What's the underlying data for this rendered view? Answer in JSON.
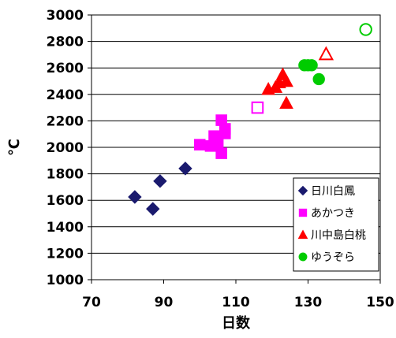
{
  "chart_data": {
    "type": "scatter",
    "title": "",
    "xlabel": "日数",
    "ylabel": "℃",
    "xlim": [
      70,
      150
    ],
    "ylim": [
      1000,
      3000
    ],
    "x_ticks": [
      70,
      90,
      110,
      130,
      150
    ],
    "y_ticks": [
      1000,
      1200,
      1400,
      1600,
      1800,
      2000,
      2200,
      2400,
      2600,
      2800,
      3000
    ],
    "grid": "horizontal",
    "legend_position": "bottom-right",
    "series": [
      {
        "name": "日川白鳳",
        "marker": "diamond",
        "color": "#1a1a6e",
        "points": [
          {
            "x": 82,
            "y": 1625
          },
          {
            "x": 87,
            "y": 1535
          },
          {
            "x": 89,
            "y": 1745
          },
          {
            "x": 96,
            "y": 1840
          }
        ]
      },
      {
        "name": "あかつき",
        "marker": "square",
        "color": "#ff00ff",
        "points": [
          {
            "x": 100,
            "y": 2020
          },
          {
            "x": 103,
            "y": 2010
          },
          {
            "x": 104,
            "y": 2085
          },
          {
            "x": 105,
            "y": 2040
          },
          {
            "x": 106,
            "y": 2205
          },
          {
            "x": 106,
            "y": 1955
          },
          {
            "x": 107,
            "y": 2140
          },
          {
            "x": 107,
            "y": 2105
          }
        ]
      },
      {
        "name": "あかつき (open)",
        "marker": "square-open",
        "color": "#ff00ff",
        "points": [
          {
            "x": 116,
            "y": 2300
          }
        ]
      },
      {
        "name": "川中島白桃",
        "marker": "triangle",
        "color": "#ff0000",
        "points": [
          {
            "x": 119,
            "y": 2440
          },
          {
            "x": 121,
            "y": 2455
          },
          {
            "x": 122,
            "y": 2490
          },
          {
            "x": 123,
            "y": 2550
          },
          {
            "x": 124,
            "y": 2500
          },
          {
            "x": 124,
            "y": 2335
          }
        ]
      },
      {
        "name": "川中島白桃 (open)",
        "marker": "triangle-open",
        "color": "#ff0000",
        "points": [
          {
            "x": 135,
            "y": 2705
          }
        ]
      },
      {
        "name": "ゆうぞら",
        "marker": "circle",
        "color": "#00cc00",
        "points": [
          {
            "x": 129,
            "y": 2620
          },
          {
            "x": 130,
            "y": 2620
          },
          {
            "x": 131,
            "y": 2620
          },
          {
            "x": 133,
            "y": 2515
          }
        ]
      },
      {
        "name": "ゆうぞら (open)",
        "marker": "circle-open",
        "color": "#00cc00",
        "points": [
          {
            "x": 146,
            "y": 2890
          }
        ]
      }
    ],
    "legend": [
      {
        "label": "日川白鳳",
        "marker": "diamond",
        "color": "#1a1a6e"
      },
      {
        "label": "あかつき",
        "marker": "square",
        "color": "#ff00ff"
      },
      {
        "label": "川中島白桃",
        "marker": "triangle",
        "color": "#ff0000"
      },
      {
        "label": "ゆうぞら",
        "marker": "circle",
        "color": "#00cc00"
      }
    ]
  }
}
